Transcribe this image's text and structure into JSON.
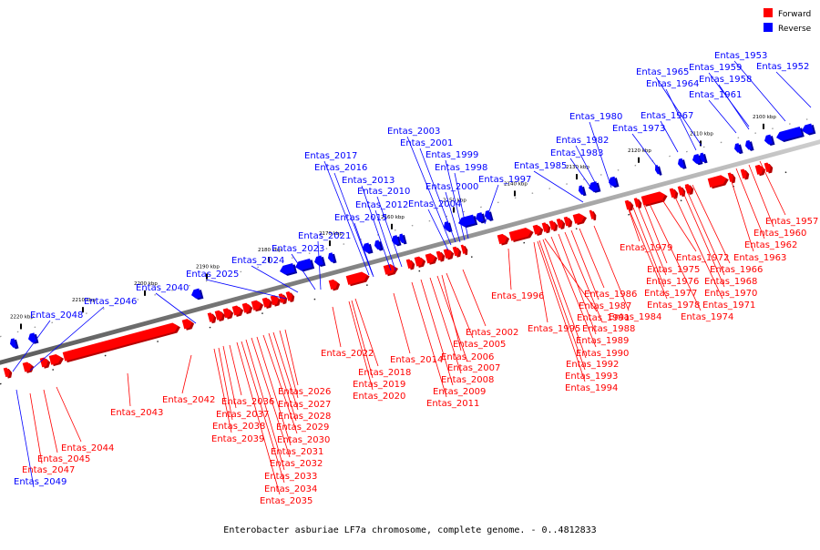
{
  "legend": [
    {
      "label": "Forward",
      "color": "#ff0000"
    },
    {
      "label": "Reverse",
      "color": "#0000ff"
    }
  ],
  "caption": "Enterobacter asburiae LF7a chromosome, complete genome. - 0..4812833",
  "axis": {
    "ticks": [
      "2100 kbp",
      "2110 kbp",
      "2120 kbp",
      "2130 kbp",
      "2140 kbp",
      "2150 kbp",
      "2160 kbp",
      "2170 kbp",
      "2180 kbp",
      "2190 kbp",
      "2200 kbp",
      "2210 kbp",
      "2220 kbp"
    ]
  },
  "genes_reverse": [
    "Entas_1953",
    "Entas_1952",
    "Entas_1959",
    "Entas_1958",
    "Entas_1965",
    "Entas_1964",
    "Entas_1961",
    "Entas_1967",
    "Entas_1980",
    "Entas_1973",
    "Entas_1982",
    "Entas_1983",
    "Entas_1985",
    "Entas_1997",
    "Entas_2003",
    "Entas_2001",
    "Entas_1999",
    "Entas_1998",
    "Entas_2000",
    "Entas_2004",
    "Entas_2017",
    "Entas_2016",
    "Entas_2013",
    "Entas_2010",
    "Entas_2012",
    "Entas_2015",
    "Entas_2021",
    "Entas_2023",
    "Entas_2024",
    "Entas_2025",
    "Entas_2040",
    "Entas_2046",
    "Entas_2048",
    "Entas_2049"
  ],
  "genes_forward": [
    "Entas_1957",
    "Entas_1960",
    "Entas_1962",
    "Entas_1963",
    "Entas_1966",
    "Entas_1968",
    "Entas_1970",
    "Entas_1971",
    "Entas_1972",
    "Entas_1974",
    "Entas_1975",
    "Entas_1976",
    "Entas_1977",
    "Entas_1978",
    "Entas_1979",
    "Entas_1984",
    "Entas_1986",
    "Entas_1987",
    "Entas_1988",
    "Entas_1989",
    "Entas_1990",
    "Entas_1991",
    "Entas_1992",
    "Entas_1993",
    "Entas_1994",
    "Entas_1995",
    "Entas_1996",
    "Entas_2002",
    "Entas_2005",
    "Entas_2006",
    "Entas_2007",
    "Entas_2008",
    "Entas_2009",
    "Entas_2011",
    "Entas_2014",
    "Entas_2018",
    "Entas_2019",
    "Entas_2020",
    "Entas_2022",
    "Entas_2026",
    "Entas_2027",
    "Entas_2028",
    "Entas_2029",
    "Entas_2030",
    "Entas_2031",
    "Entas_2032",
    "Entas_2033",
    "Entas_2034",
    "Entas_2035",
    "Entas_2036",
    "Entas_2037",
    "Entas_2038",
    "Entas_2039",
    "Entas_2042",
    "Entas_2043",
    "Entas_2044",
    "Entas_2045",
    "Entas_2047"
  ]
}
